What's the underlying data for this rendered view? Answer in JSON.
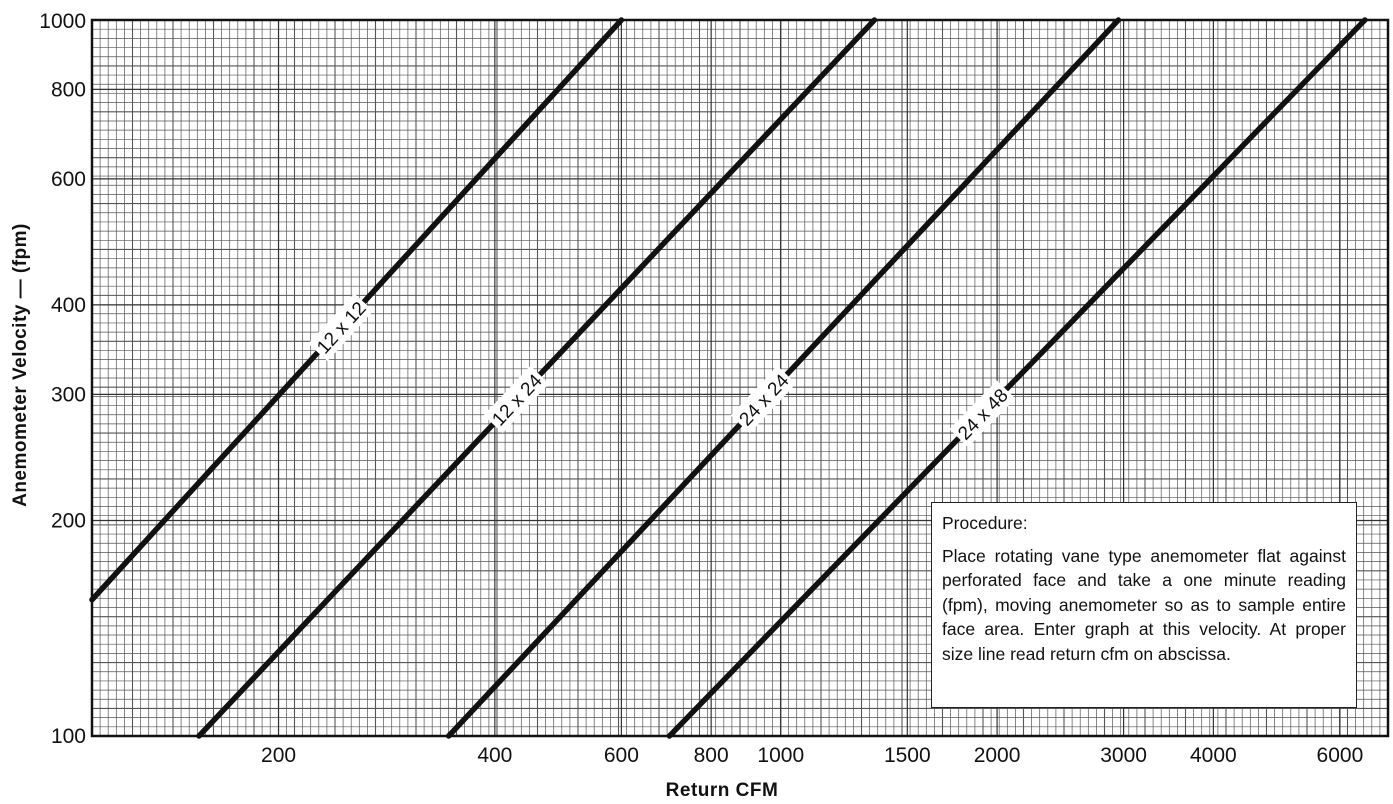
{
  "chart_data": {
    "type": "line",
    "xlabel": "Return CFM",
    "ylabel": "Anemometer Velocity — (fpm)",
    "x_scale": "log",
    "y_scale": "log",
    "xlim": [
      110,
      7000
    ],
    "ylim": [
      100,
      1000
    ],
    "x_ticks": [
      200,
      400,
      600,
      800,
      1000,
      1500,
      2000,
      3000,
      4000,
      6000
    ],
    "x_tick_labels": [
      "200",
      "400",
      "600",
      "800",
      "1000",
      "1500",
      "2000",
      "3000",
      "4000",
      "6000"
    ],
    "y_ticks": [
      100,
      200,
      300,
      400,
      600,
      800,
      1000
    ],
    "y_tick_labels": [
      "100",
      "200",
      "300",
      "400",
      "600",
      "800",
      "1000"
    ],
    "grid": true,
    "series": [
      {
        "name": "12 x 12",
        "x": [
          110,
          600
        ],
        "y": [
          155,
          1000
        ]
      },
      {
        "name": "12 x 24",
        "x": [
          155,
          1350
        ],
        "y": [
          100,
          1000
        ]
      },
      {
        "name": "24 x 24",
        "x": [
          345,
          2950
        ],
        "y": [
          100,
          1000
        ]
      },
      {
        "name": "24 x 48",
        "x": [
          700,
          6500
        ],
        "y": [
          100,
          1000
        ]
      }
    ]
  },
  "procedure": {
    "title": "Procedure:",
    "text": "Place rotating vane type anemometer flat against perforated face and take a one minute reading (fpm), moving anemometer so as to sample entire face area. Enter graph at this velocity. At proper size line read return cfm on abscissa."
  }
}
